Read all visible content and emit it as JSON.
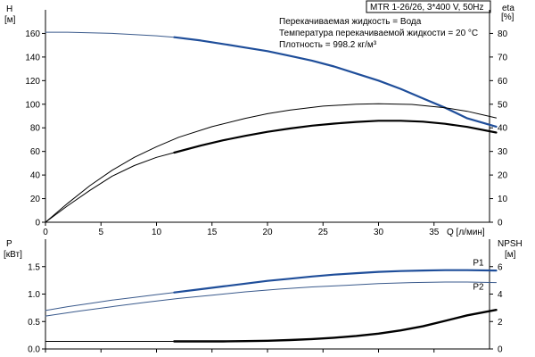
{
  "info_box": {
    "model": "MTR 1-26/26, 3*400 V, 50Hz",
    "lines": [
      "Перекачиваемая жидкость = Вода",
      "Температура перекачиваемой жидкости = 20 °C",
      "Плотность = 998.2 кг/м³"
    ]
  },
  "chart_data": [
    {
      "type": "line",
      "panel": "top",
      "xlabel": "Q [л/мин]",
      "xlim": [
        0,
        40
      ],
      "x_ticks": [
        0,
        5,
        10,
        15,
        20,
        25,
        30,
        35
      ],
      "ylabel": "H",
      "ylabel_unit": "[м]",
      "ylim": [
        0,
        180
      ],
      "y_ticks": [
        0,
        20,
        40,
        60,
        80,
        100,
        120,
        140,
        160
      ],
      "y2label": "eta",
      "y2label_unit": "[%]",
      "y2lim": [
        0,
        90
      ],
      "y2_ticks": [
        0,
        10,
        20,
        30,
        40,
        50,
        60,
        70,
        80
      ],
      "series": [
        {
          "id": "head_full",
          "axis": "y",
          "color": "#3a5a8c",
          "width": 1,
          "x": [
            0,
            2,
            4,
            6,
            8,
            10,
            11.6
          ],
          "y": [
            161,
            161,
            160.6,
            160,
            159,
            158,
            156.8
          ]
        },
        {
          "id": "head_op",
          "axis": "y",
          "color": "#1f4e9a",
          "width": 2.2,
          "x": [
            11.6,
            14,
            16,
            18,
            20,
            22,
            24,
            26,
            28,
            30,
            32,
            34,
            36,
            38,
            40.6
          ],
          "y": [
            156.8,
            154,
            151,
            148,
            145,
            141,
            137,
            132,
            126,
            120,
            113,
            105,
            97,
            88,
            81
          ]
        },
        {
          "id": "eta_thin",
          "axis": "y2",
          "color": "#000000",
          "width": 1,
          "x": [
            0,
            2,
            4,
            6,
            8,
            10,
            12,
            15,
            18,
            20,
            22,
            25,
            28,
            30,
            33,
            36,
            38,
            40.6
          ],
          "y": [
            0,
            8,
            15.5,
            22,
            27.5,
            32,
            36,
            40.5,
            44,
            46,
            47.5,
            49.2,
            50,
            50.2,
            49.9,
            48.5,
            47,
            44.2
          ]
        },
        {
          "id": "eta_full",
          "axis": "y2",
          "color": "#000000",
          "width": 1,
          "x": [
            0,
            2,
            4,
            6,
            8,
            10,
            11.6
          ],
          "y": [
            0,
            7,
            13.5,
            19.5,
            24,
            27.5,
            29.5
          ]
        },
        {
          "id": "eta_op",
          "axis": "y2",
          "color": "#000000",
          "width": 2.2,
          "x": [
            11.6,
            14,
            16,
            18,
            20,
            22,
            24,
            26,
            28,
            30,
            32,
            34,
            36,
            38,
            40.6
          ],
          "y": [
            29.5,
            32.5,
            34.7,
            36.6,
            38.3,
            39.7,
            40.9,
            41.8,
            42.5,
            43,
            43,
            42.6,
            41.7,
            40.4,
            38
          ]
        }
      ]
    },
    {
      "type": "line",
      "panel": "bottom",
      "xlim": [
        0,
        40
      ],
      "ylabel": "P",
      "ylabel_unit": "[кВт]",
      "ylim": [
        0,
        2.0
      ],
      "y_ticks": [
        0.0,
        0.5,
        1.0,
        1.5
      ],
      "y2label": "NPSH",
      "y2label_unit": "[м]",
      "y2lim": [
        0,
        8
      ],
      "y2_ticks": [
        0,
        2,
        4,
        6
      ],
      "series": [
        {
          "id": "p1_full",
          "name": "P1",
          "axis": "y",
          "color": "#3a5a8c",
          "width": 1,
          "x": [
            0,
            2,
            4,
            6,
            8,
            10,
            11.6
          ],
          "y": [
            0.7,
            0.77,
            0.83,
            0.89,
            0.94,
            0.99,
            1.03
          ]
        },
        {
          "id": "p1_op",
          "axis": "y",
          "color": "#1f4e9a",
          "width": 2.2,
          "x": [
            11.6,
            14,
            16,
            18,
            20,
            22,
            24,
            26,
            28,
            30,
            32,
            34,
            36,
            38,
            40.6
          ],
          "y": [
            1.03,
            1.09,
            1.14,
            1.19,
            1.24,
            1.28,
            1.32,
            1.355,
            1.38,
            1.405,
            1.42,
            1.43,
            1.435,
            1.435,
            1.43
          ]
        },
        {
          "id": "p2_full",
          "name": "P2",
          "axis": "y",
          "color": "#3a5a8c",
          "width": 1,
          "x": [
            0,
            3,
            6,
            9,
            12,
            15,
            18,
            21,
            24,
            27,
            30,
            33,
            36,
            38,
            40.6
          ],
          "y": [
            0.6,
            0.69,
            0.77,
            0.85,
            0.92,
            0.98,
            1.04,
            1.09,
            1.13,
            1.16,
            1.19,
            1.21,
            1.22,
            1.22,
            1.21
          ]
        },
        {
          "id": "npsh_full",
          "axis": "y2",
          "color": "#000000",
          "width": 1,
          "x": [
            0,
            4,
            8,
            11.6
          ],
          "y": [
            0.55,
            0.55,
            0.55,
            0.55
          ]
        },
        {
          "id": "npsh_op",
          "axis": "y2",
          "color": "#000000",
          "width": 2.4,
          "x": [
            11.6,
            14,
            16,
            18,
            20,
            22,
            24,
            26,
            28,
            30,
            32,
            34,
            36,
            38,
            40.6
          ],
          "y": [
            0.55,
            0.55,
            0.55,
            0.57,
            0.6,
            0.65,
            0.72,
            0.82,
            0.95,
            1.12,
            1.35,
            1.65,
            2.05,
            2.45,
            2.85
          ]
        }
      ],
      "labels": [
        {
          "text": "P1",
          "x": 38.5,
          "y": 1.52,
          "axis": "y"
        },
        {
          "text": "P2",
          "x": 38.5,
          "y": 1.08,
          "axis": "y"
        }
      ]
    }
  ]
}
